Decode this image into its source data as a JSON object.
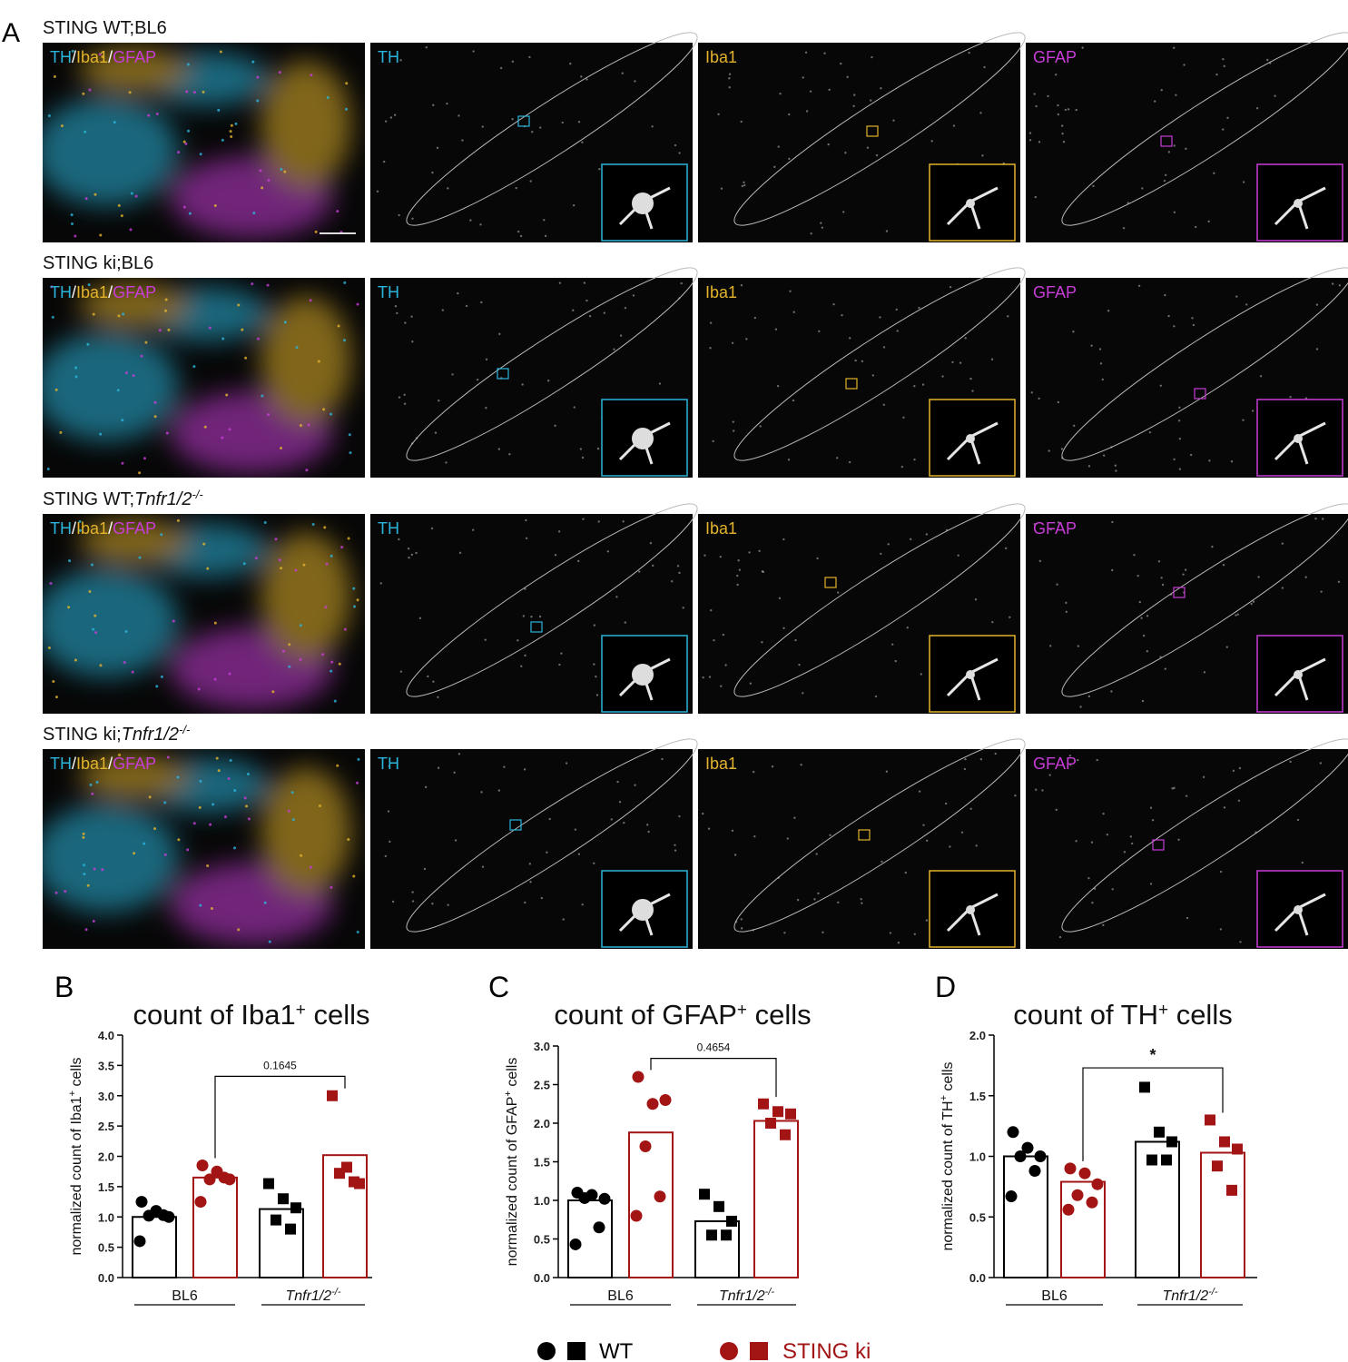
{
  "panel_labels": [
    "A",
    "B",
    "C",
    "D"
  ],
  "panel_a": {
    "rows": [
      {
        "prefix": "STING WT;BL6"
      },
      {
        "prefix": "STING ki;BL6"
      },
      {
        "prefix": "STING WT;",
        "genotype": "Tnfr1/2",
        "sup": "-/-"
      },
      {
        "prefix": "STING ki;",
        "genotype": "Tnfr1/2",
        "sup": "-/-"
      }
    ],
    "channels": [
      {
        "name": "TH",
        "color": "#2bb5dc"
      },
      {
        "name": "Iba1",
        "color": "#e3b32c"
      },
      {
        "name": "GFAP",
        "color": "#c83cd8"
      }
    ],
    "separator": "/"
  },
  "legend": [
    {
      "name": "WT",
      "color": "#000000"
    },
    {
      "name": "STING ki",
      "color": "#a31515"
    }
  ],
  "chart_data": [
    {
      "type": "bar",
      "title": {
        "text": "count of Iba1",
        "sup": "+",
        "suffix": " cells"
      },
      "ylabel": {
        "text": "normalized count of Iba1",
        "sup": "+",
        "suffix": " cells"
      },
      "groups": [
        "BL6",
        "Tnfr1/2"
      ],
      "group_sups": [
        null,
        "-/-"
      ],
      "group_markers": [
        "circle",
        "square"
      ],
      "ylim": [
        0,
        4
      ],
      "yticks": [
        {
          "value": 0,
          "label": "0.0"
        },
        0.5,
        {
          "value": 1,
          "label": "1.0"
        },
        1.5,
        {
          "value": 2,
          "label": "2.0"
        },
        2.5,
        {
          "value": 3,
          "label": "3.0"
        },
        3.5,
        {
          "value": 4,
          "label": "4.0"
        }
      ],
      "series": [
        {
          "color": "#000000",
          "values": [
            1.0,
            1.13
          ],
          "points": [
            [
              1.25,
              1.1,
              1.0,
              1.02,
              1.03,
              0.6
            ],
            [
              1.55,
              1.3,
              1.15,
              0.95,
              0.8
            ]
          ]
        },
        {
          "color": "#a31515",
          "values": [
            1.65,
            2.02
          ],
          "points": [
            [
              1.85,
              1.75,
              1.62,
              1.62,
              1.65,
              1.25
            ],
            [
              3.0,
              1.82,
              1.55,
              1.72,
              1.58
            ]
          ]
        }
      ],
      "comparison": {
        "series": 1,
        "groups": [
          0,
          1
        ],
        "label": "0.1645"
      }
    },
    {
      "type": "bar",
      "title": {
        "text": "count of GFAP",
        "sup": "+",
        "suffix": " cells"
      },
      "ylabel": {
        "text": "normalized count of  GFAP",
        "sup": "+",
        "suffix": " cells"
      },
      "groups": [
        "BL6",
        "Tnfr1/2"
      ],
      "group_sups": [
        null,
        "-/-"
      ],
      "group_markers": [
        "circle",
        "square"
      ],
      "ylim": [
        0,
        3
      ],
      "yticks": [
        {
          "value": 0,
          "label": "0.0"
        },
        0.5,
        {
          "value": 1,
          "label": "1.0"
        },
        1.5,
        {
          "value": 2,
          "label": "2.0"
        },
        2.5,
        {
          "value": 3,
          "label": "3.0"
        }
      ],
      "series": [
        {
          "color": "#000000",
          "values": [
            1.0,
            0.73
          ],
          "points": [
            [
              1.1,
              1.07,
              1.02,
              1.03,
              0.65,
              0.43
            ],
            [
              1.08,
              0.92,
              0.73,
              0.55,
              0.55
            ]
          ]
        },
        {
          "color": "#a31515",
          "values": [
            1.88,
            2.03
          ],
          "points": [
            [
              2.6,
              2.25,
              2.3,
              1.7,
              1.05,
              0.8
            ],
            [
              2.25,
              2.15,
              2.12,
              2.0,
              1.85
            ]
          ]
        }
      ],
      "comparison": {
        "series": 1,
        "groups": [
          0,
          1
        ],
        "label": "0.4654"
      }
    },
    {
      "type": "bar",
      "title": {
        "text": "count of TH",
        "sup": "+",
        "suffix": " cells"
      },
      "ylabel": {
        "text": "normalized count of TH",
        "sup": "+",
        "suffix": " cells"
      },
      "groups": [
        "BL6",
        "Tnfr1/2"
      ],
      "group_sups": [
        null,
        "-/-"
      ],
      "group_markers": [
        "circle",
        "square"
      ],
      "ylim": [
        0,
        2
      ],
      "yticks": [
        {
          "value": 0,
          "label": "0.0"
        },
        0.5,
        {
          "value": 1,
          "label": "1.0"
        },
        1.5,
        {
          "value": 2,
          "label": "2.0"
        }
      ],
      "series": [
        {
          "color": "#000000",
          "values": [
            1.0,
            1.12
          ],
          "points": [
            [
              1.2,
              1.07,
              1.0,
              1.0,
              0.88,
              0.67
            ],
            [
              1.57,
              1.2,
              1.12,
              0.97,
              0.97
            ]
          ]
        },
        {
          "color": "#a31515",
          "values": [
            0.79,
            1.03
          ],
          "points": [
            [
              0.9,
              0.86,
              0.77,
              0.68,
              0.62,
              0.56
            ],
            [
              1.3,
              1.12,
              1.06,
              0.92,
              0.72
            ]
          ]
        }
      ],
      "comparison": {
        "series": 1,
        "groups": [
          0,
          1
        ],
        "label": "*"
      }
    }
  ]
}
